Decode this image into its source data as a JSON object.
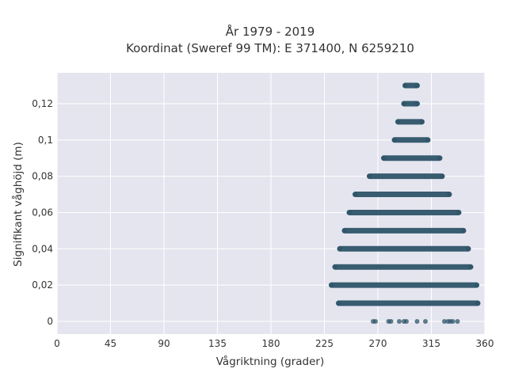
{
  "chart_data": {
    "type": "scatter",
    "title_line1": "År 1979 - 2019",
    "title_line2": "Koordinat (Sweref 99 TM): E 371400, N 6259210",
    "xlabel": "Vågriktning (grader)",
    "ylabel": "Signifikant våghöjd (m)",
    "xlim": [
      0,
      360
    ],
    "ylim": [
      -0.007,
      0.137
    ],
    "x_ticks": [
      0,
      45,
      90,
      135,
      180,
      225,
      270,
      315,
      360
    ],
    "x_tick_labels": [
      "0",
      "45",
      "90",
      "135",
      "180",
      "225",
      "270",
      "315",
      "360"
    ],
    "y_ticks": [
      0,
      0.02,
      0.04,
      0.06,
      0.08,
      0.1,
      0.12
    ],
    "y_tick_labels": [
      "0",
      "0,02",
      "0,04",
      "0,06",
      "0,08",
      "0,1",
      "0,12"
    ],
    "grid": true,
    "marker_color": "#2e5468",
    "plot_background": "#e5e5ef",
    "bands": [
      {
        "y": 0.13,
        "x_min": 293,
        "x_max": 303
      },
      {
        "y": 0.12,
        "x_min": 292,
        "x_max": 303
      },
      {
        "y": 0.11,
        "x_min": 287,
        "x_max": 307
      },
      {
        "y": 0.1,
        "x_min": 284,
        "x_max": 312
      },
      {
        "y": 0.09,
        "x_min": 275,
        "x_max": 322
      },
      {
        "y": 0.08,
        "x_min": 263,
        "x_max": 324
      },
      {
        "y": 0.07,
        "x_min": 251,
        "x_max": 330
      },
      {
        "y": 0.06,
        "x_min": 246,
        "x_max": 338
      },
      {
        "y": 0.05,
        "x_min": 242,
        "x_max": 342
      },
      {
        "y": 0.04,
        "x_min": 238,
        "x_max": 346
      },
      {
        "y": 0.03,
        "x_min": 234,
        "x_max": 348
      },
      {
        "y": 0.02,
        "x_min": 231,
        "x_max": 353
      },
      {
        "y": 0.01,
        "x_min": 237,
        "x_max": 354
      }
    ],
    "scattered_points": [
      {
        "x": 266,
        "y": 0
      },
      {
        "x": 268,
        "y": 0
      },
      {
        "x": 279,
        "y": 0
      },
      {
        "x": 281,
        "y": 0
      },
      {
        "x": 288,
        "y": 0
      },
      {
        "x": 292,
        "y": 0
      },
      {
        "x": 294,
        "y": 0
      },
      {
        "x": 303,
        "y": 0
      },
      {
        "x": 310,
        "y": 0
      },
      {
        "x": 326,
        "y": 0
      },
      {
        "x": 329,
        "y": 0
      },
      {
        "x": 331,
        "y": 0
      },
      {
        "x": 333,
        "y": 0
      },
      {
        "x": 337,
        "y": 0
      }
    ]
  }
}
